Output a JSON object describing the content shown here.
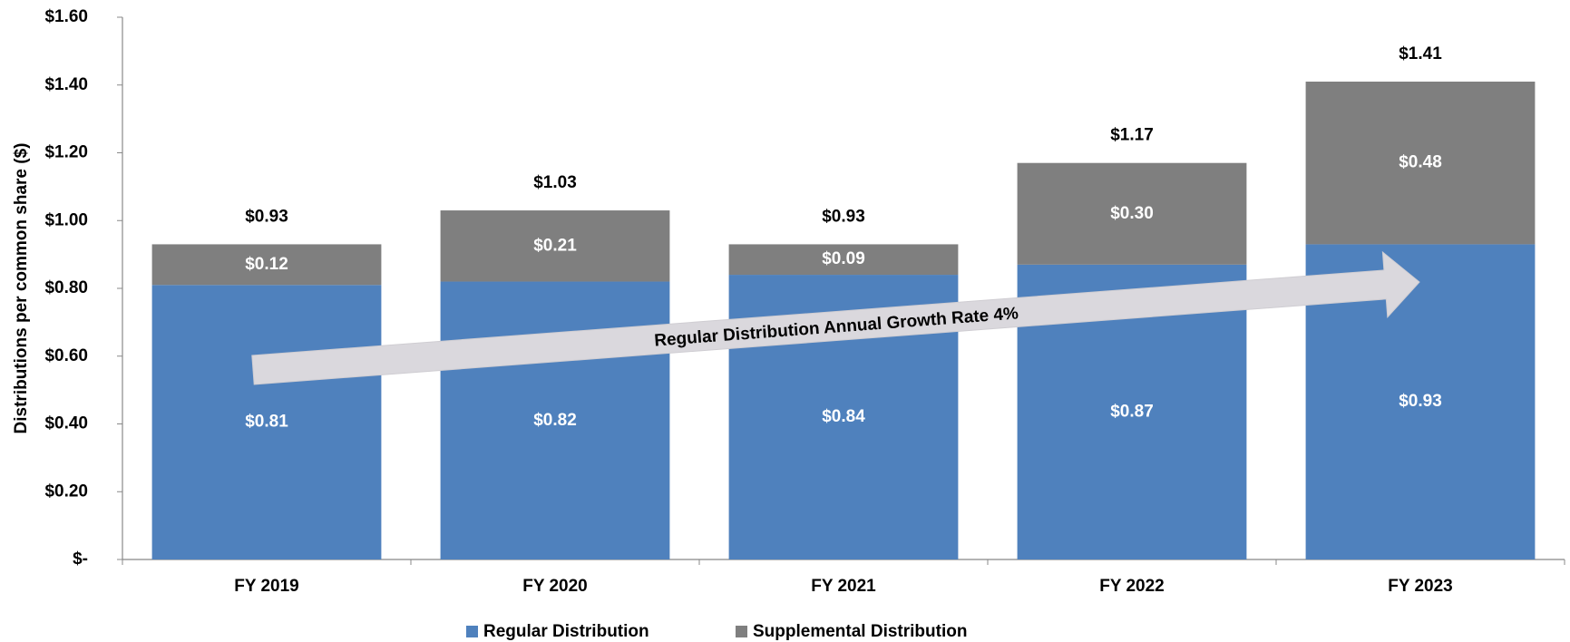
{
  "chart_data": {
    "type": "stacked_bar",
    "y_label": "Distributions per common share ($)",
    "annotation": "Regular Distribution Annual Growth Rate 4%",
    "categories": [
      "FY 2019",
      "FY 2020",
      "FY 2021",
      "FY 2022",
      "FY 2023"
    ],
    "series": [
      {
        "name": "Regular Distribution",
        "color": "#4f81bd",
        "values": [
          0.81,
          0.82,
          0.84,
          0.87,
          0.93
        ],
        "value_labels": [
          "$0.81",
          "$0.82",
          "$0.84",
          "$0.87",
          "$0.93"
        ]
      },
      {
        "name": "Supplemental Distribution",
        "color": "#7f7f7f",
        "values": [
          0.12,
          0.21,
          0.09,
          0.3,
          0.48
        ],
        "value_labels": [
          "$0.12",
          "$0.21",
          "$0.09",
          "$0.30",
          "$0.48"
        ]
      }
    ],
    "totals": [
      0.93,
      1.03,
      0.93,
      1.17,
      1.41
    ],
    "total_labels": [
      "$0.93",
      "$1.03",
      "$0.93",
      "$1.17",
      "$1.41"
    ],
    "ylim": [
      0,
      1.6
    ],
    "yticks": [
      {
        "value": 0,
        "label": "$-"
      },
      {
        "value": 0.2,
        "label": "$0.20"
      },
      {
        "value": 0.4,
        "label": "$0.40"
      },
      {
        "value": 0.6,
        "label": "$0.60"
      },
      {
        "value": 0.8,
        "label": "$0.80"
      },
      {
        "value": 1.0,
        "label": "$1.00"
      },
      {
        "value": 1.2,
        "label": "$1.20"
      },
      {
        "value": 1.4,
        "label": "$1.40"
      },
      {
        "value": 1.6,
        "label": "$1.60"
      }
    ],
    "grid": false,
    "legend": "bottom"
  }
}
